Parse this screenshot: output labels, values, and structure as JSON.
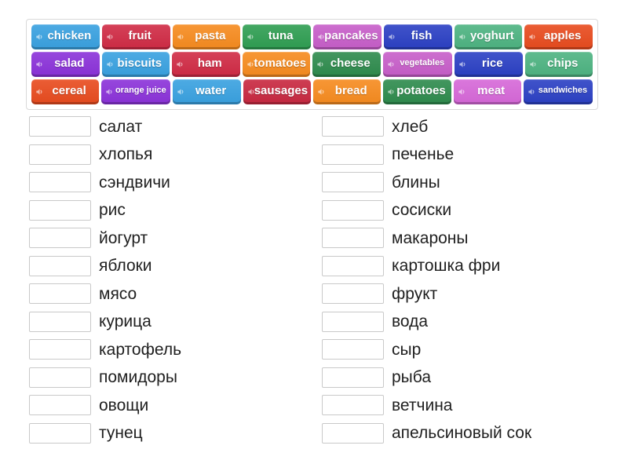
{
  "activity": {
    "type_label": "match-up",
    "tile_text_color": "#ffffff",
    "word_text_color": "#1f1f1f"
  },
  "tiles": [
    {
      "label": "chicken",
      "color": "#39a1e0",
      "small": false
    },
    {
      "label": "fruit",
      "color": "#d02b45",
      "small": false
    },
    {
      "label": "pasta",
      "color": "#f68b1f",
      "small": false
    },
    {
      "label": "tuna",
      "color": "#2f9e52",
      "small": false
    },
    {
      "label": "pancakes",
      "color": "#c75ec9",
      "small": false
    },
    {
      "label": "fish",
      "color": "#2b40c4",
      "small": false
    },
    {
      "label": "yoghurt",
      "color": "#4db381",
      "small": false
    },
    {
      "label": "apples",
      "color": "#e84b1e",
      "small": false
    },
    {
      "label": "salad",
      "color": "#8b32d9",
      "small": false
    },
    {
      "label": "biscuits",
      "color": "#39a1e0",
      "small": false
    },
    {
      "label": "ham",
      "color": "#d02b45",
      "small": false
    },
    {
      "label": "tomatoes",
      "color": "#f68b1f",
      "small": false
    },
    {
      "label": "cheese",
      "color": "#2e8b4d",
      "small": false
    },
    {
      "label": "vegetables",
      "color": "#c75ec9",
      "small": true
    },
    {
      "label": "rice",
      "color": "#2b40c4",
      "small": false
    },
    {
      "label": "chips",
      "color": "#4db381",
      "small": false
    },
    {
      "label": "cereal",
      "color": "#e84b1e",
      "small": false
    },
    {
      "label": "orange juice",
      "color": "#8b32d9",
      "small": true
    },
    {
      "label": "water",
      "color": "#39a1e0",
      "small": false
    },
    {
      "label": "sausages",
      "color": "#c82840",
      "small": false
    },
    {
      "label": "bread",
      "color": "#f68b1f",
      "small": false
    },
    {
      "label": "potatoes",
      "color": "#2e8b4d",
      "small": false
    },
    {
      "label": "meat",
      "color": "#d668d8",
      "small": false
    },
    {
      "label": "sandwiches",
      "color": "#2b40c4",
      "small": true
    }
  ],
  "tiles_per_row": 8,
  "pairs": {
    "left": [
      "салат",
      "хлопья",
      "сэндвичи",
      "рис",
      "йогурт",
      "яблоки",
      "мясо",
      "курица",
      "картофель",
      "помидоры",
      "овощи",
      "тунец"
    ],
    "right": [
      "хлеб",
      "печенье",
      "блины",
      "сосиски",
      "макароны",
      "картошка фри",
      "фрукт",
      "вода",
      "сыр",
      "рыба",
      "ветчина",
      "апельсиновый сок"
    ]
  },
  "icons": {
    "speaker": "speaker-icon"
  }
}
